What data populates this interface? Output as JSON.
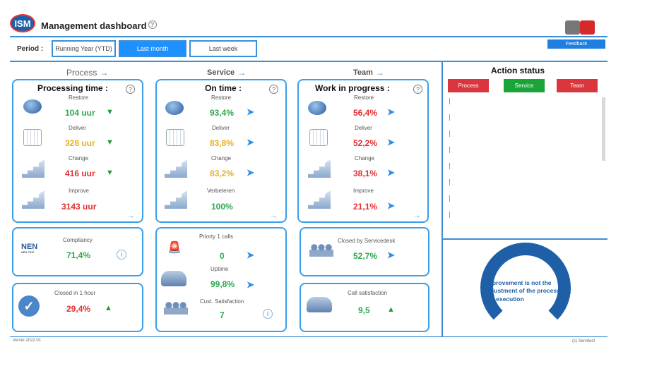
{
  "header": {
    "logo_text": "ISM",
    "title": "Management dashboard",
    "help_glyph": "?",
    "puzzle_icon": "puzzle-icon"
  },
  "period": {
    "label": "Period  :",
    "options": [
      "Running Year (YTD)",
      "Last month",
      "Last week"
    ],
    "selected": "Last month"
  },
  "feedback_label": "Feedback",
  "columns": {
    "process": {
      "heading": "Process",
      "card_title": "Processing time :",
      "metrics": [
        {
          "label": "Restore",
          "value": "104 uur",
          "color": "#2fa84f",
          "indicator": "down"
        },
        {
          "label": "Deliver",
          "value": "328 uur",
          "color": "#e8b020",
          "indicator": "down"
        },
        {
          "label": "Change",
          "value": "416 uur",
          "color": "#e03030",
          "indicator": "down"
        },
        {
          "label": "Improve",
          "value": "3143 uur",
          "color": "#e03030",
          "indicator": "none"
        }
      ]
    },
    "service": {
      "heading": "Service",
      "card_title": "On time :",
      "metrics": [
        {
          "label": "Restore",
          "value": "93,4%",
          "color": "#2fa84f",
          "indicator": "right"
        },
        {
          "label": "Deliver",
          "value": "83,8%",
          "color": "#e8b020",
          "indicator": "right"
        },
        {
          "label": "Change",
          "value": "83,2%",
          "color": "#e8b020",
          "indicator": "right"
        },
        {
          "label": "Verbeteren",
          "value": "100%",
          "color": "#2fa84f",
          "indicator": "none"
        }
      ]
    },
    "team": {
      "heading": "Team",
      "card_title": "Work in progress :",
      "metrics": [
        {
          "label": "Restore",
          "value": "56,4%",
          "color": "#e03030",
          "indicator": "right"
        },
        {
          "label": "Deliver",
          "value": "52,2%",
          "color": "#e03030",
          "indicator": "right"
        },
        {
          "label": "Change",
          "value": "38,1%",
          "color": "#e03030",
          "indicator": "right"
        },
        {
          "label": "Improve",
          "value": "21,1%",
          "color": "#e03030",
          "indicator": "right"
        }
      ]
    }
  },
  "compliancy": {
    "nen_text": "NEN",
    "nen_sub": "NEN 7510",
    "label": "Compliancy",
    "value": "71,4%"
  },
  "closed_hour": {
    "label": "Closed in 1 hour",
    "value": "29,4%"
  },
  "service_box": {
    "metrics": [
      {
        "label": "Priorty 1 calls",
        "value": "0"
      },
      {
        "label": "Uptime",
        "value": "99,8%"
      },
      {
        "label": "Cust. Satisfaction",
        "value": "7"
      }
    ]
  },
  "servicedesk": {
    "label": "Closed by Servicedesk",
    "value": "52,7%"
  },
  "call_sat": {
    "label": "Call satisfaction",
    "value": "9,5"
  },
  "action_status": {
    "title": "Action status",
    "buttons": [
      {
        "label": "Process",
        "color": "#d9363e"
      },
      {
        "label": "Service",
        "color": "#1aa336"
      },
      {
        "label": "Team",
        "color": "#d9363e"
      }
    ]
  },
  "quote": "Improvement is not the adjustment of the process but the execution",
  "footer": {
    "version": "Versie 2022.01",
    "copyright": "(c) Servitect"
  }
}
